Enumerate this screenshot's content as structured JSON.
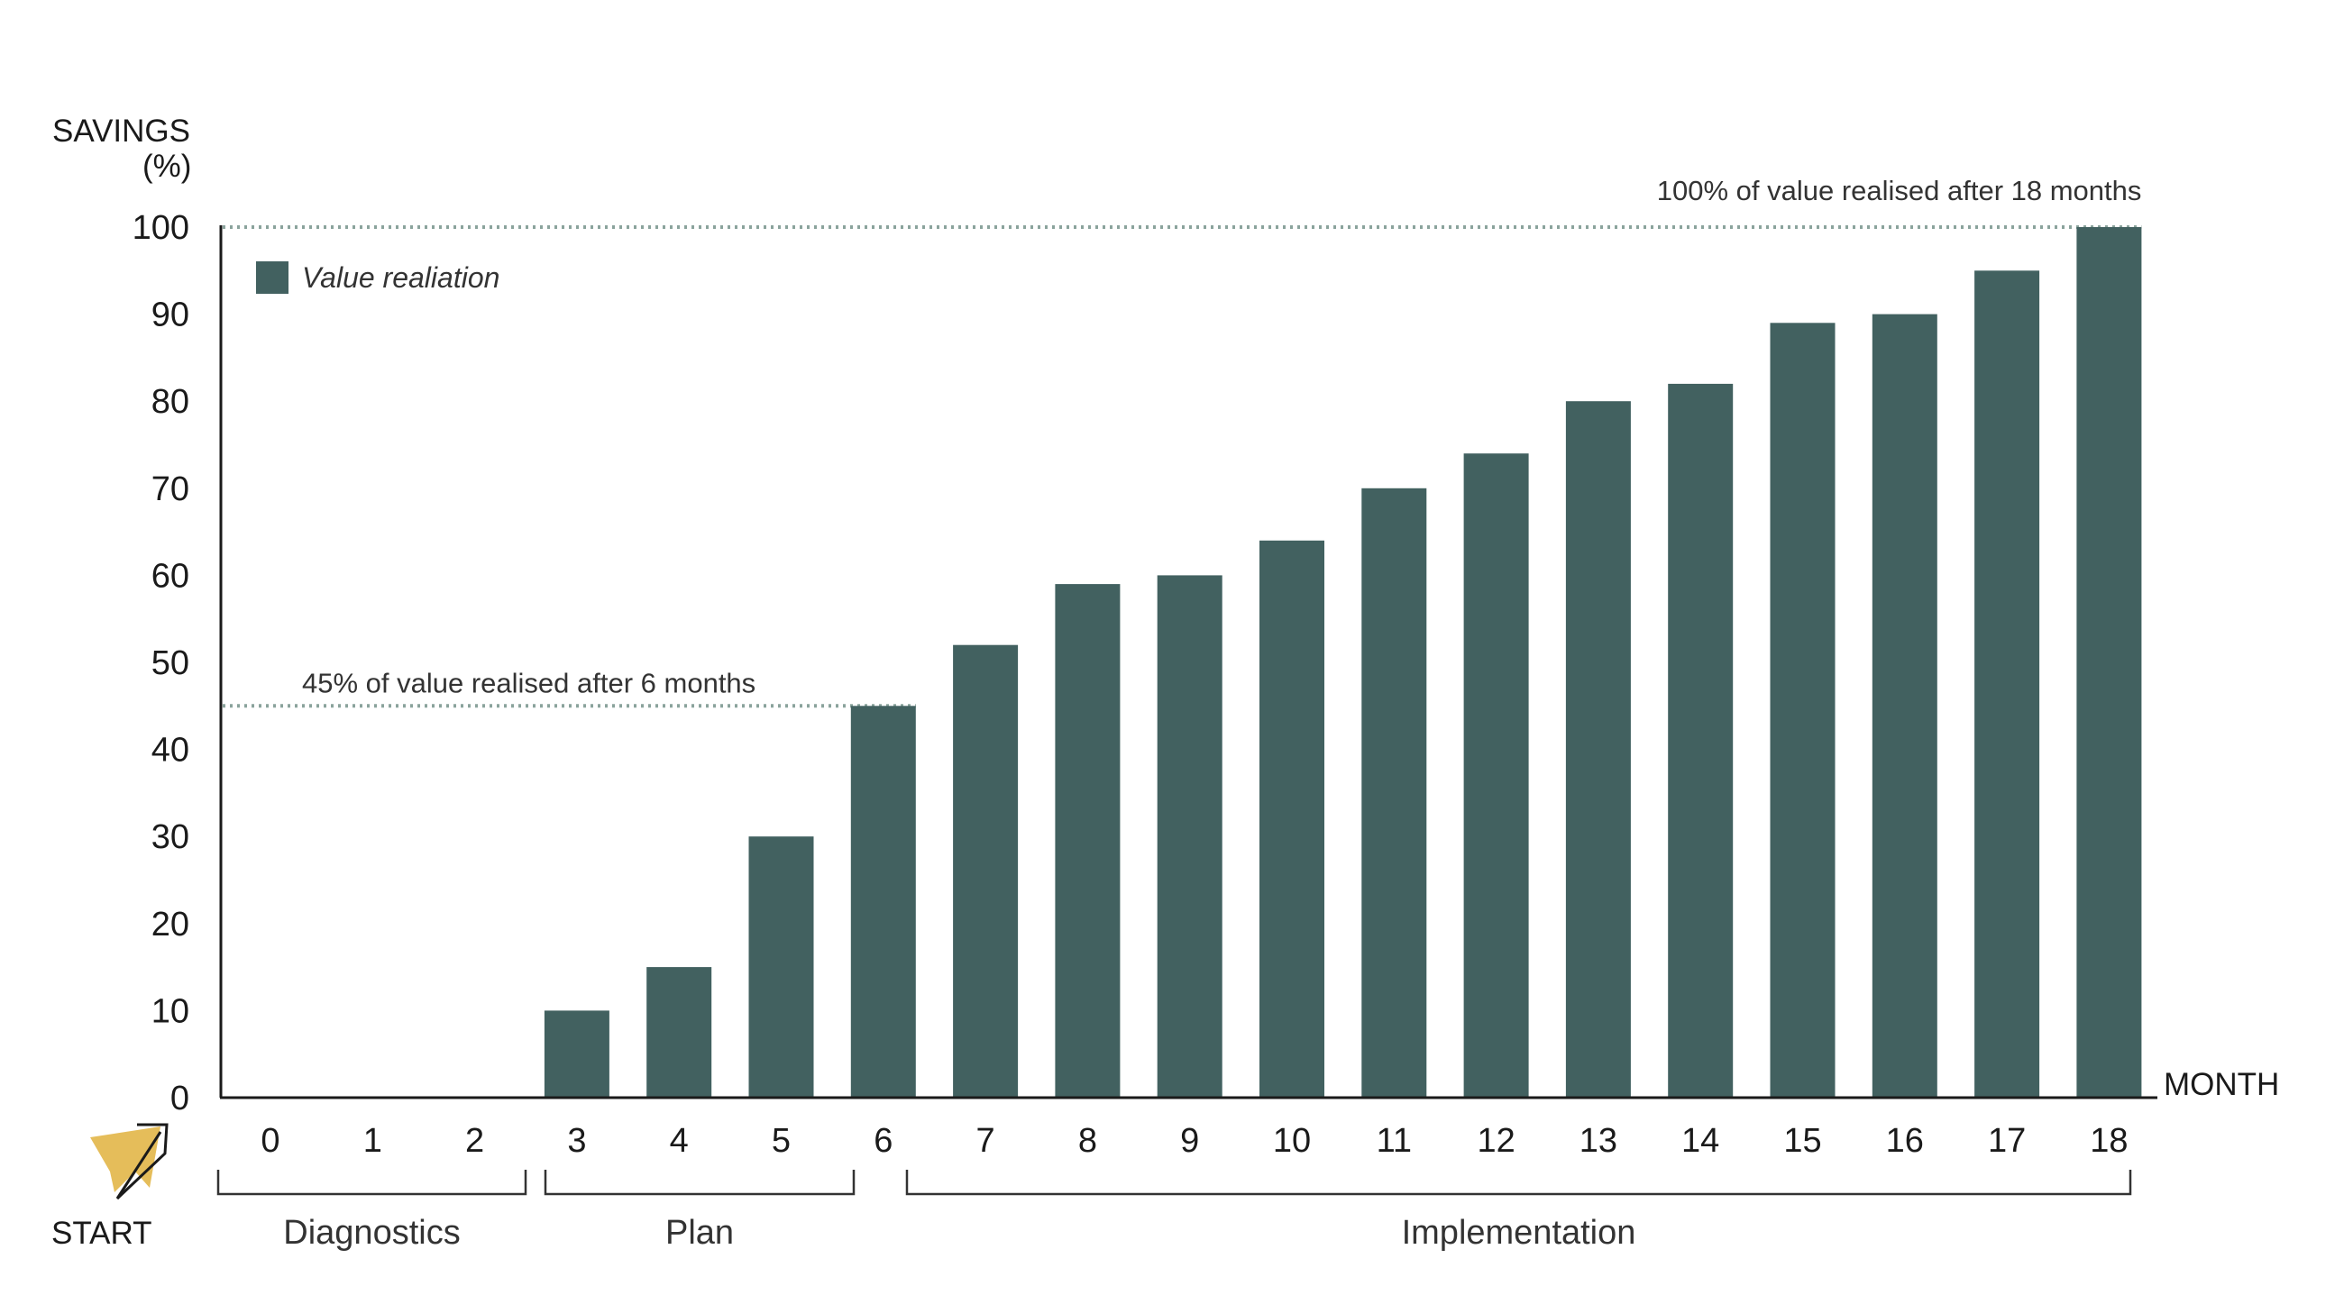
{
  "chart_data": {
    "type": "bar",
    "ylabel": "SAVINGS\n(%)",
    "xlabel": "MONTH",
    "ylim": [
      0,
      100
    ],
    "yticks": [
      0,
      10,
      20,
      30,
      40,
      50,
      60,
      70,
      80,
      90,
      100
    ],
    "categories": [
      "0",
      "1",
      "2",
      "3",
      "4",
      "5",
      "6",
      "7",
      "8",
      "9",
      "10",
      "11",
      "12",
      "13",
      "14",
      "15",
      "16",
      "17",
      "18"
    ],
    "series": [
      {
        "name": "Value realiation",
        "values": [
          0,
          0,
          0,
          10,
          15,
          30,
          45,
          52,
          59,
          60,
          64,
          70,
          74,
          80,
          82,
          89,
          90,
          95,
          100
        ],
        "color": "#426160"
      }
    ],
    "legend_position": "top-left",
    "grid": false,
    "annotations": [
      {
        "text": "45% of value realised after 6 months",
        "y": 45,
        "x_end": "6"
      },
      {
        "text": "100% of value realised after 18 months",
        "y": 100,
        "x_end": "18"
      }
    ],
    "phases": [
      {
        "label": "Diagnostics",
        "from": "0",
        "to": "2"
      },
      {
        "label": "Plan",
        "from": "3",
        "to": "5"
      },
      {
        "label": "Implementation",
        "from": "6",
        "to": "18"
      }
    ],
    "start_label": "START",
    "start_icon": "arrow-start-icon",
    "start_icon_color": "#e5bd5a",
    "reference_line_color": "#8aa39c"
  }
}
